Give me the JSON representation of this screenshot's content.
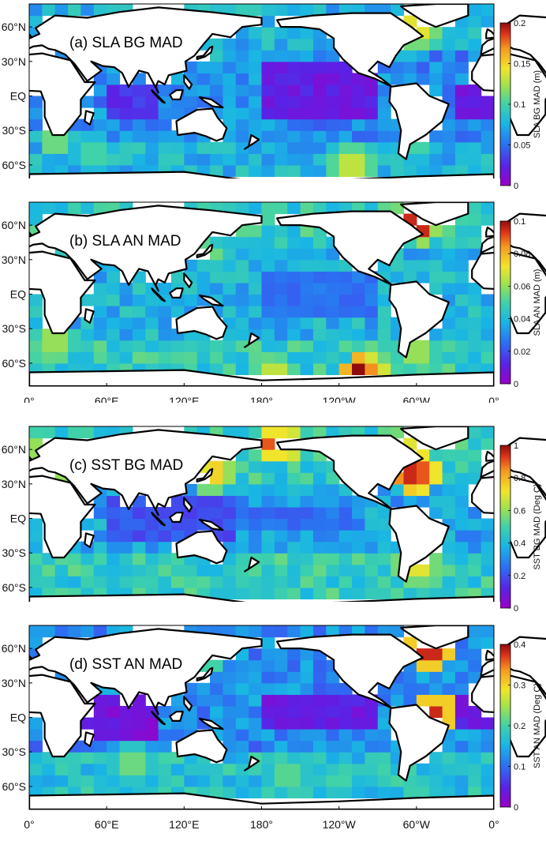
{
  "chart_data": [
    {
      "type": "heatmap",
      "title": "(a) SLA BG MAD",
      "colorbar": {
        "label": "SLA BG MAD (m)",
        "range": [
          0,
          0.2
        ],
        "ticks": [
          "0",
          "0.05",
          "0.1",
          "0.15",
          "0.2"
        ]
      },
      "x_ticks": [],
      "y_ticks": [
        "60°N",
        "30°N",
        "EQ",
        "30°S",
        "60°S"
      ],
      "xlim": [
        0,
        360
      ],
      "ylim": [
        -80,
        80
      ],
      "highlights": [
        {
          "lon": 300,
          "lat": 58,
          "value": 0.14
        },
        {
          "lon": 305,
          "lat": 55,
          "value": 0.12
        },
        {
          "lon": 290,
          "lat": 45,
          "value": 0.1
        },
        {
          "lon": 140,
          "lat": 35,
          "value": 0.09
        },
        {
          "lon": 20,
          "lat": -38,
          "value": 0.11
        },
        {
          "lon": 50,
          "lat": -50,
          "value": 0.1
        },
        {
          "lon": 300,
          "lat": -45,
          "value": 0.1
        },
        {
          "lon": 250,
          "lat": -60,
          "value": 0.13
        },
        {
          "lon": 150,
          "lat": -45,
          "value": 0.09
        }
      ],
      "low_regions": [
        {
          "lon_min": 180,
          "lon_max": 270,
          "lat_min": -20,
          "lat_max": 25,
          "value": 0.02
        },
        {
          "lon_min": 330,
          "lon_max": 360,
          "lat_min": -20,
          "lat_max": 10,
          "value": 0.02
        },
        {
          "lon_min": 60,
          "lon_max": 100,
          "lat_min": -20,
          "lat_max": 10,
          "value": 0.03
        }
      ]
    },
    {
      "type": "heatmap",
      "title": "(b) SLA AN MAD",
      "colorbar": {
        "label": "SLA AN MAD (m)",
        "range": [
          0,
          0.1
        ],
        "ticks": [
          "0",
          "0.02",
          "0.04",
          "0.06",
          "0.08",
          "0.1"
        ]
      },
      "x_ticks": [
        "0°",
        "60°E",
        "120°E",
        "180°",
        "120°W",
        "60°W",
        "0°"
      ],
      "y_ticks": [
        "60°N",
        "30°N",
        "EQ",
        "30°S",
        "60°S"
      ],
      "xlim": [
        0,
        360
      ],
      "ylim": [
        -80,
        80
      ],
      "highlights": [
        {
          "lon": 300,
          "lat": 62,
          "value": 0.095
        },
        {
          "lon": 295,
          "lat": 66,
          "value": 0.07
        },
        {
          "lon": 305,
          "lat": 58,
          "value": 0.075
        },
        {
          "lon": 255,
          "lat": -70,
          "value": 0.1
        },
        {
          "lon": 265,
          "lat": -70,
          "value": 0.085
        },
        {
          "lon": 20,
          "lat": -40,
          "value": 0.06
        },
        {
          "lon": 190,
          "lat": -70,
          "value": 0.065
        },
        {
          "lon": 300,
          "lat": -50,
          "value": 0.06
        },
        {
          "lon": 140,
          "lat": 35,
          "value": 0.055
        }
      ],
      "low_regions": [
        {
          "lon_min": 180,
          "lon_max": 270,
          "lat_min": -20,
          "lat_max": 20,
          "value": 0.025
        }
      ]
    },
    {
      "type": "heatmap",
      "title": "(c) SST BG MAD",
      "colorbar": {
        "label": "SST BG MAD (Deg C)",
        "range": [
          0,
          1
        ],
        "ticks": [
          "0",
          "0.2",
          "0.4",
          "0.6",
          "0.8",
          "1"
        ]
      },
      "x_ticks": [],
      "y_ticks": [
        "60°N",
        "30°N",
        "EQ",
        "30°S",
        "60°S"
      ],
      "xlim": [
        0,
        360
      ],
      "ylim": [
        -80,
        80
      ],
      "highlights": [
        {
          "lon": 295,
          "lat": 40,
          "value": 0.95
        },
        {
          "lon": 302,
          "lat": 40,
          "value": 0.9
        },
        {
          "lon": 288,
          "lat": 42,
          "value": 0.85
        },
        {
          "lon": 145,
          "lat": 42,
          "value": 0.75
        },
        {
          "lon": 140,
          "lat": 38,
          "value": 0.7
        },
        {
          "lon": 190,
          "lat": 64,
          "value": 0.9
        },
        {
          "lon": 197,
          "lat": 66,
          "value": 0.85
        },
        {
          "lon": 20,
          "lat": 47,
          "value": 0.75
        },
        {
          "lon": 300,
          "lat": -40,
          "value": 0.7
        },
        {
          "lon": 10,
          "lat": 60,
          "value": 0.6
        },
        {
          "lon": 290,
          "lat": 62,
          "value": 0.7
        }
      ],
      "low_regions": [
        {
          "lon_min": 60,
          "lon_max": 160,
          "lat_min": -20,
          "lat_max": 20,
          "value": 0.2
        },
        {
          "lon_min": 160,
          "lon_max": 250,
          "lat_min": -10,
          "lat_max": 10,
          "value": 0.25
        }
      ]
    },
    {
      "type": "heatmap",
      "title": "(d) SST AN MAD",
      "colorbar": {
        "label": "SST AN MAD (Deg C)",
        "range": [
          0,
          0.4
        ],
        "ticks": [
          "0",
          "0.1",
          "0.2",
          "0.3",
          "0.4"
        ]
      },
      "x_ticks": [
        "0°",
        "60°E",
        "120°E",
        "180°",
        "120°W",
        "60°W",
        "0°"
      ],
      "y_ticks": [
        "60°N",
        "30°N",
        "EQ",
        "30°S",
        "60°S"
      ],
      "xlim": [
        0,
        360
      ],
      "ylim": [
        -80,
        80
      ],
      "highlights": [
        {
          "lon": 310,
          "lat": 60,
          "value": 0.38
        },
        {
          "lon": 316,
          "lat": 60,
          "value": 0.37
        },
        {
          "lon": 305,
          "lat": 66,
          "value": 0.28
        },
        {
          "lon": 315,
          "lat": 5,
          "value": 0.38
        },
        {
          "lon": 140,
          "lat": 58,
          "value": 0.25
        },
        {
          "lon": 80,
          "lat": -40,
          "value": 0.22
        },
        {
          "lon": 200,
          "lat": -50,
          "value": 0.21
        },
        {
          "lon": 240,
          "lat": -55,
          "value": 0.2
        }
      ],
      "low_regions": [
        {
          "lon_min": 30,
          "lon_max": 100,
          "lat_min": -20,
          "lat_max": 20,
          "value": 0.03
        },
        {
          "lon_min": 180,
          "lon_max": 270,
          "lat_min": -5,
          "lat_max": 15,
          "value": 0.04
        },
        {
          "lon_min": 320,
          "lon_max": 360,
          "lat_min": -10,
          "lat_max": 15,
          "value": 0.04
        }
      ]
    }
  ]
}
